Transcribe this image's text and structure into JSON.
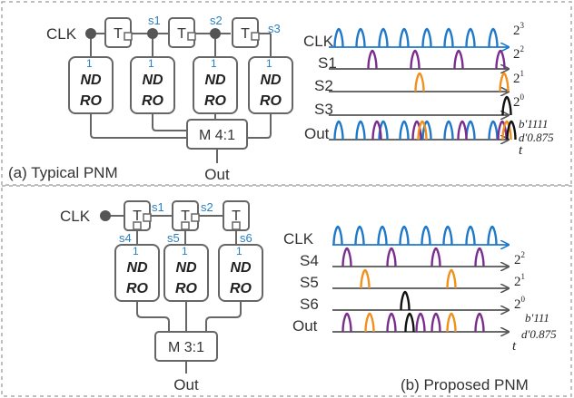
{
  "colors": {
    "clk": "#1f78c8",
    "s1": "#7b2d8e",
    "s2": "#f0901e",
    "s3": "#111111",
    "wire": "#666666",
    "sig_label": "#2a7fc1"
  },
  "top": {
    "caption": "(a) Typical PNM",
    "clk_label": "CLK",
    "t_label": "T",
    "signals": [
      "s1",
      "s2",
      "s3"
    ],
    "ndro_weight": "1",
    "ndro_line1": "ND",
    "ndro_line2": "RO",
    "mux_label": "M 4:1",
    "out_label": "Out",
    "timing_rows": [
      "CLK",
      "S1",
      "S2",
      "S3",
      "Out"
    ],
    "powers_base": "2",
    "powers_exp": [
      "3",
      "2",
      "1",
      "0"
    ],
    "binary_value": "b′1111",
    "decimal_value": "d′0.875",
    "time_label": "t"
  },
  "bottom": {
    "caption": "(b) Proposed PNM",
    "clk_label": "CLK",
    "t_label": "T",
    "signals_top": [
      "s1",
      "s2"
    ],
    "signals_bottom": [
      "s4",
      "s5",
      "s6"
    ],
    "ndro_weight": "1",
    "ndro_line1": "ND",
    "ndro_line2": "RO",
    "mux_label": "M 3:1",
    "out_label": "Out",
    "timing_rows": [
      "CLK",
      "S4",
      "S5",
      "S6",
      "Out"
    ],
    "powers_base": "2",
    "powers_exp": [
      "2",
      "1",
      "0"
    ],
    "binary_value": "b′111",
    "decimal_value": "d′0.875",
    "time_label": "t"
  }
}
